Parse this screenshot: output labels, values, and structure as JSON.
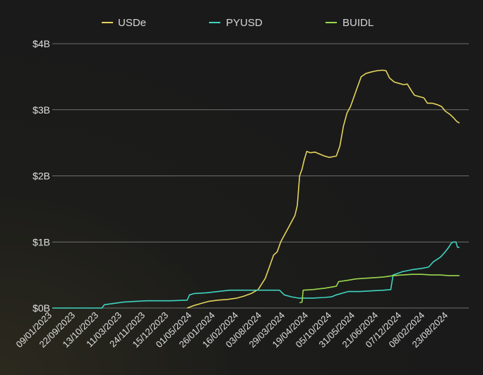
{
  "chart_data": {
    "type": "line",
    "title": "",
    "xlabel": "",
    "ylabel": "",
    "ylim": [
      0,
      4
    ],
    "y_unit": "B",
    "y_ticks": [
      0,
      1,
      2,
      3,
      4
    ],
    "y_tick_labels": [
      "$0B",
      "$1B",
      "$2B",
      "$3B",
      "$4B"
    ],
    "x_tick_labels": [
      "09/01/2023",
      "22/09/2023",
      "13/10/2023",
      "11/03/2023",
      "24/11/2023",
      "15/12/2023",
      "01/05/2024",
      "26/01/2024",
      "16/02/2024",
      "03/08/2024",
      "29/03/2024",
      "19/04/2024",
      "05/10/2024",
      "31/05/2024",
      "21/06/2024",
      "07/12/2024",
      "08/02/2024",
      "23/08/2024"
    ],
    "x_range": [
      0,
      17.6
    ],
    "legend_position": "top-center",
    "grid": true,
    "series": [
      {
        "name": "USDe",
        "color": "#e3d35c",
        "points": [
          [
            5.7,
            0.0
          ],
          [
            6.0,
            0.04
          ],
          [
            6.3,
            0.07
          ],
          [
            6.6,
            0.1
          ],
          [
            7.0,
            0.12
          ],
          [
            7.4,
            0.13
          ],
          [
            7.8,
            0.15
          ],
          [
            8.1,
            0.18
          ],
          [
            8.4,
            0.22
          ],
          [
            8.7,
            0.28
          ],
          [
            9.0,
            0.45
          ],
          [
            9.2,
            0.65
          ],
          [
            9.35,
            0.8
          ],
          [
            9.5,
            0.85
          ],
          [
            9.65,
            1.0
          ],
          [
            9.8,
            1.1
          ],
          [
            9.95,
            1.2
          ],
          [
            10.1,
            1.3
          ],
          [
            10.25,
            1.4
          ],
          [
            10.35,
            1.55
          ],
          [
            10.45,
            2.0
          ],
          [
            10.55,
            2.1
          ],
          [
            10.65,
            2.25
          ],
          [
            10.75,
            2.37
          ],
          [
            10.9,
            2.35
          ],
          [
            11.1,
            2.36
          ],
          [
            11.3,
            2.33
          ],
          [
            11.5,
            2.3
          ],
          [
            11.7,
            2.28
          ],
          [
            12.0,
            2.3
          ],
          [
            12.15,
            2.45
          ],
          [
            12.3,
            2.75
          ],
          [
            12.45,
            2.95
          ],
          [
            12.6,
            3.05
          ],
          [
            12.75,
            3.2
          ],
          [
            12.9,
            3.35
          ],
          [
            13.05,
            3.5
          ],
          [
            13.25,
            3.55
          ],
          [
            13.45,
            3.57
          ],
          [
            13.7,
            3.59
          ],
          [
            13.95,
            3.6
          ],
          [
            14.1,
            3.59
          ],
          [
            14.25,
            3.48
          ],
          [
            14.45,
            3.42
          ],
          [
            14.65,
            3.4
          ],
          [
            14.85,
            3.38
          ],
          [
            15.0,
            3.39
          ],
          [
            15.15,
            3.3
          ],
          [
            15.3,
            3.22
          ],
          [
            15.5,
            3.2
          ],
          [
            15.7,
            3.18
          ],
          [
            15.85,
            3.1
          ],
          [
            16.05,
            3.1
          ],
          [
            16.25,
            3.08
          ],
          [
            16.45,
            3.05
          ],
          [
            16.6,
            2.98
          ],
          [
            16.8,
            2.93
          ],
          [
            16.95,
            2.88
          ],
          [
            17.1,
            2.82
          ],
          [
            17.2,
            2.8
          ]
        ]
      },
      {
        "name": "PYUSD",
        "color": "#3fd3c0",
        "points": [
          [
            0.0,
            0.0
          ],
          [
            2.1,
            0.0
          ],
          [
            2.2,
            0.05
          ],
          [
            2.6,
            0.07
          ],
          [
            3.0,
            0.09
          ],
          [
            3.5,
            0.1
          ],
          [
            4.0,
            0.11
          ],
          [
            5.0,
            0.11
          ],
          [
            5.7,
            0.12
          ],
          [
            5.8,
            0.2
          ],
          [
            6.0,
            0.22
          ],
          [
            6.5,
            0.23
          ],
          [
            7.0,
            0.25
          ],
          [
            7.5,
            0.27
          ],
          [
            8.0,
            0.27
          ],
          [
            8.5,
            0.27
          ],
          [
            9.0,
            0.27
          ],
          [
            9.6,
            0.27
          ],
          [
            9.8,
            0.2
          ],
          [
            10.1,
            0.17
          ],
          [
            10.4,
            0.15
          ],
          [
            11.0,
            0.15
          ],
          [
            11.5,
            0.16
          ],
          [
            11.8,
            0.17
          ],
          [
            12.0,
            0.2
          ],
          [
            12.5,
            0.25
          ],
          [
            13.0,
            0.25
          ],
          [
            13.5,
            0.26
          ],
          [
            14.0,
            0.27
          ],
          [
            14.3,
            0.28
          ],
          [
            14.4,
            0.5
          ],
          [
            14.8,
            0.55
          ],
          [
            15.2,
            0.58
          ],
          [
            15.6,
            0.6
          ],
          [
            15.9,
            0.62
          ],
          [
            16.1,
            0.7
          ],
          [
            16.4,
            0.77
          ],
          [
            16.6,
            0.85
          ],
          [
            16.75,
            0.92
          ],
          [
            16.85,
            0.98
          ],
          [
            16.95,
            1.0
          ],
          [
            17.05,
            1.0
          ],
          [
            17.12,
            0.92
          ],
          [
            17.2,
            0.92
          ]
        ]
      },
      {
        "name": "BUIDL",
        "color": "#9bd84e",
        "points": [
          [
            10.45,
            0.08
          ],
          [
            10.55,
            0.09
          ],
          [
            10.6,
            0.27
          ],
          [
            11.0,
            0.28
          ],
          [
            11.5,
            0.3
          ],
          [
            12.0,
            0.33
          ],
          [
            12.1,
            0.4
          ],
          [
            12.5,
            0.42
          ],
          [
            12.8,
            0.44
          ],
          [
            13.2,
            0.45
          ],
          [
            13.6,
            0.46
          ],
          [
            14.0,
            0.47
          ],
          [
            14.4,
            0.49
          ],
          [
            14.8,
            0.5
          ],
          [
            15.2,
            0.51
          ],
          [
            15.6,
            0.51
          ],
          [
            16.0,
            0.5
          ],
          [
            16.4,
            0.5
          ],
          [
            16.8,
            0.49
          ],
          [
            17.2,
            0.49
          ]
        ]
      }
    ]
  }
}
